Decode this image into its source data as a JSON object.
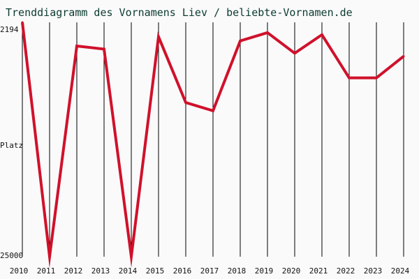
{
  "chart_data": {
    "type": "line",
    "title": "Trenddiagramm des Vornamens Liev / beliebte-Vornamen.de",
    "xlabel": "",
    "ylabel": "Platz",
    "y_top_label": "2194",
    "y_bottom_label": "25000",
    "ylim": [
      2194,
      25000
    ],
    "y_inverted": true,
    "grid": "vertical",
    "categories": [
      "2010",
      "2011",
      "2012",
      "2013",
      "2014",
      "2015",
      "2016",
      "2017",
      "2018",
      "2019",
      "2020",
      "2021",
      "2022",
      "2023",
      "2024"
    ],
    "series": [
      {
        "name": "Liev",
        "color": "#d0112b",
        "values": [
          2194,
          25000,
          4500,
          4800,
          25000,
          3600,
          10000,
          10800,
          4000,
          3200,
          5200,
          3400,
          7600,
          7600,
          5500
        ]
      }
    ]
  },
  "colors": {
    "background": "#fafafa",
    "line": "#d0112b",
    "grid": "#000000",
    "title": "#0b3b2e"
  }
}
